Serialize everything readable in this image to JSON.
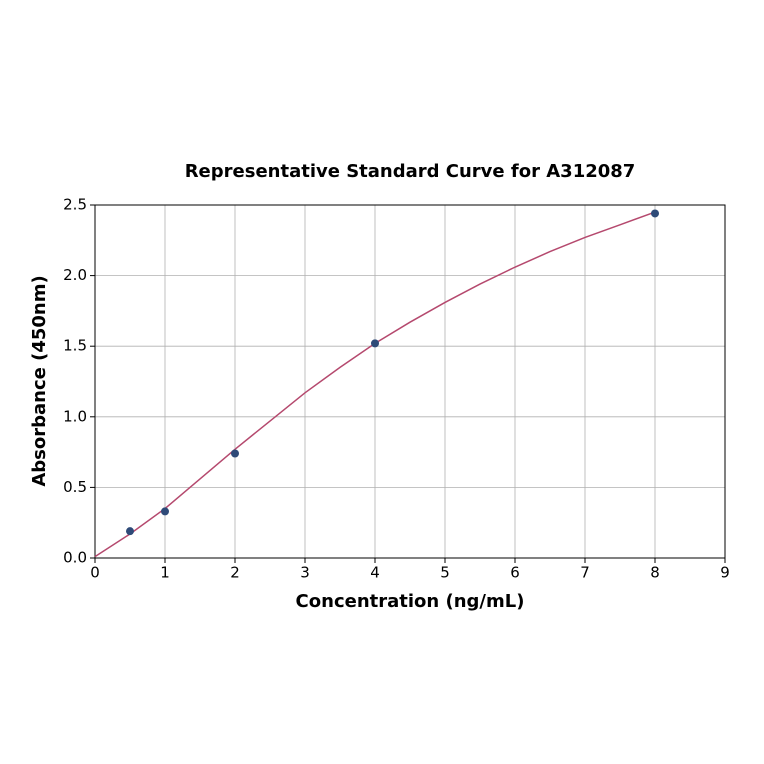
{
  "chart_data": {
    "type": "scatter",
    "title": "Representative Standard Curve for A312087",
    "x_label": "Concentration (ng/mL)",
    "y_label": "Absorbance (450nm)",
    "xlim": [
      0,
      9
    ],
    "xticks": [
      0,
      1,
      2,
      3,
      4,
      5,
      6,
      7,
      8,
      9
    ],
    "ylim": [
      0,
      2.5
    ],
    "yticks": [
      {
        "value": 0,
        "label": "0.0"
      },
      0.5,
      {
        "value": 1,
        "label": "1.0"
      },
      1.5,
      {
        "value": 2,
        "label": "2.0"
      },
      2.5
    ],
    "grid": true,
    "series": [
      {
        "kind": "points",
        "color": "#2e4a78",
        "x": [
          0.5,
          1,
          2,
          4,
          8
        ],
        "values": [
          0.19,
          0.33,
          0.74,
          1.52,
          2.44
        ]
      },
      {
        "kind": "line",
        "color": "#b5496e",
        "x": [
          0,
          0.5,
          1,
          1.5,
          2,
          2.5,
          3,
          3.5,
          4,
          4.5,
          5,
          5.5,
          6,
          6.5,
          7,
          7.5,
          8
        ],
        "values": [
          0.01,
          0.17,
          0.35,
          0.56,
          0.77,
          0.97,
          1.17,
          1.35,
          1.52,
          1.67,
          1.81,
          1.94,
          2.06,
          2.17,
          2.27,
          2.36,
          2.45
        ]
      }
    ]
  }
}
